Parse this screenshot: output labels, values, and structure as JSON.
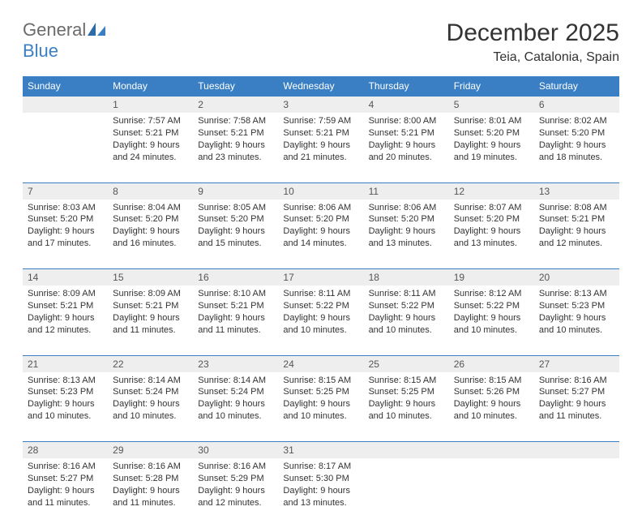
{
  "brand": {
    "part1": "General",
    "part2": "Blue"
  },
  "title": "December 2025",
  "location": "Teia, Catalonia, Spain",
  "colors": {
    "header_bg": "#3a7fc4",
    "header_text": "#ffffff",
    "daynum_bg": "#eeeeee",
    "border": "#3a7fc4",
    "text": "#333333",
    "logo_gray": "#6b6b6b",
    "logo_blue": "#3a7fc4"
  },
  "weekdays": [
    "Sunday",
    "Monday",
    "Tuesday",
    "Wednesday",
    "Thursday",
    "Friday",
    "Saturday"
  ],
  "weeks": [
    {
      "nums": [
        "",
        "1",
        "2",
        "3",
        "4",
        "5",
        "6"
      ],
      "cells": [
        null,
        {
          "sr": "Sunrise: 7:57 AM",
          "ss": "Sunset: 5:21 PM",
          "d1": "Daylight: 9 hours",
          "d2": "and 24 minutes."
        },
        {
          "sr": "Sunrise: 7:58 AM",
          "ss": "Sunset: 5:21 PM",
          "d1": "Daylight: 9 hours",
          "d2": "and 23 minutes."
        },
        {
          "sr": "Sunrise: 7:59 AM",
          "ss": "Sunset: 5:21 PM",
          "d1": "Daylight: 9 hours",
          "d2": "and 21 minutes."
        },
        {
          "sr": "Sunrise: 8:00 AM",
          "ss": "Sunset: 5:21 PM",
          "d1": "Daylight: 9 hours",
          "d2": "and 20 minutes."
        },
        {
          "sr": "Sunrise: 8:01 AM",
          "ss": "Sunset: 5:20 PM",
          "d1": "Daylight: 9 hours",
          "d2": "and 19 minutes."
        },
        {
          "sr": "Sunrise: 8:02 AM",
          "ss": "Sunset: 5:20 PM",
          "d1": "Daylight: 9 hours",
          "d2": "and 18 minutes."
        }
      ]
    },
    {
      "nums": [
        "7",
        "8",
        "9",
        "10",
        "11",
        "12",
        "13"
      ],
      "cells": [
        {
          "sr": "Sunrise: 8:03 AM",
          "ss": "Sunset: 5:20 PM",
          "d1": "Daylight: 9 hours",
          "d2": "and 17 minutes."
        },
        {
          "sr": "Sunrise: 8:04 AM",
          "ss": "Sunset: 5:20 PM",
          "d1": "Daylight: 9 hours",
          "d2": "and 16 minutes."
        },
        {
          "sr": "Sunrise: 8:05 AM",
          "ss": "Sunset: 5:20 PM",
          "d1": "Daylight: 9 hours",
          "d2": "and 15 minutes."
        },
        {
          "sr": "Sunrise: 8:06 AM",
          "ss": "Sunset: 5:20 PM",
          "d1": "Daylight: 9 hours",
          "d2": "and 14 minutes."
        },
        {
          "sr": "Sunrise: 8:06 AM",
          "ss": "Sunset: 5:20 PM",
          "d1": "Daylight: 9 hours",
          "d2": "and 13 minutes."
        },
        {
          "sr": "Sunrise: 8:07 AM",
          "ss": "Sunset: 5:20 PM",
          "d1": "Daylight: 9 hours",
          "d2": "and 13 minutes."
        },
        {
          "sr": "Sunrise: 8:08 AM",
          "ss": "Sunset: 5:21 PM",
          "d1": "Daylight: 9 hours",
          "d2": "and 12 minutes."
        }
      ]
    },
    {
      "nums": [
        "14",
        "15",
        "16",
        "17",
        "18",
        "19",
        "20"
      ],
      "cells": [
        {
          "sr": "Sunrise: 8:09 AM",
          "ss": "Sunset: 5:21 PM",
          "d1": "Daylight: 9 hours",
          "d2": "and 12 minutes."
        },
        {
          "sr": "Sunrise: 8:09 AM",
          "ss": "Sunset: 5:21 PM",
          "d1": "Daylight: 9 hours",
          "d2": "and 11 minutes."
        },
        {
          "sr": "Sunrise: 8:10 AM",
          "ss": "Sunset: 5:21 PM",
          "d1": "Daylight: 9 hours",
          "d2": "and 11 minutes."
        },
        {
          "sr": "Sunrise: 8:11 AM",
          "ss": "Sunset: 5:22 PM",
          "d1": "Daylight: 9 hours",
          "d2": "and 10 minutes."
        },
        {
          "sr": "Sunrise: 8:11 AM",
          "ss": "Sunset: 5:22 PM",
          "d1": "Daylight: 9 hours",
          "d2": "and 10 minutes."
        },
        {
          "sr": "Sunrise: 8:12 AM",
          "ss": "Sunset: 5:22 PM",
          "d1": "Daylight: 9 hours",
          "d2": "and 10 minutes."
        },
        {
          "sr": "Sunrise: 8:13 AM",
          "ss": "Sunset: 5:23 PM",
          "d1": "Daylight: 9 hours",
          "d2": "and 10 minutes."
        }
      ]
    },
    {
      "nums": [
        "21",
        "22",
        "23",
        "24",
        "25",
        "26",
        "27"
      ],
      "cells": [
        {
          "sr": "Sunrise: 8:13 AM",
          "ss": "Sunset: 5:23 PM",
          "d1": "Daylight: 9 hours",
          "d2": "and 10 minutes."
        },
        {
          "sr": "Sunrise: 8:14 AM",
          "ss": "Sunset: 5:24 PM",
          "d1": "Daylight: 9 hours",
          "d2": "and 10 minutes."
        },
        {
          "sr": "Sunrise: 8:14 AM",
          "ss": "Sunset: 5:24 PM",
          "d1": "Daylight: 9 hours",
          "d2": "and 10 minutes."
        },
        {
          "sr": "Sunrise: 8:15 AM",
          "ss": "Sunset: 5:25 PM",
          "d1": "Daylight: 9 hours",
          "d2": "and 10 minutes."
        },
        {
          "sr": "Sunrise: 8:15 AM",
          "ss": "Sunset: 5:25 PM",
          "d1": "Daylight: 9 hours",
          "d2": "and 10 minutes."
        },
        {
          "sr": "Sunrise: 8:15 AM",
          "ss": "Sunset: 5:26 PM",
          "d1": "Daylight: 9 hours",
          "d2": "and 10 minutes."
        },
        {
          "sr": "Sunrise: 8:16 AM",
          "ss": "Sunset: 5:27 PM",
          "d1": "Daylight: 9 hours",
          "d2": "and 11 minutes."
        }
      ]
    },
    {
      "nums": [
        "28",
        "29",
        "30",
        "31",
        "",
        "",
        ""
      ],
      "cells": [
        {
          "sr": "Sunrise: 8:16 AM",
          "ss": "Sunset: 5:27 PM",
          "d1": "Daylight: 9 hours",
          "d2": "and 11 minutes."
        },
        {
          "sr": "Sunrise: 8:16 AM",
          "ss": "Sunset: 5:28 PM",
          "d1": "Daylight: 9 hours",
          "d2": "and 11 minutes."
        },
        {
          "sr": "Sunrise: 8:16 AM",
          "ss": "Sunset: 5:29 PM",
          "d1": "Daylight: 9 hours",
          "d2": "and 12 minutes."
        },
        {
          "sr": "Sunrise: 8:17 AM",
          "ss": "Sunset: 5:30 PM",
          "d1": "Daylight: 9 hours",
          "d2": "and 13 minutes."
        },
        null,
        null,
        null
      ]
    }
  ]
}
